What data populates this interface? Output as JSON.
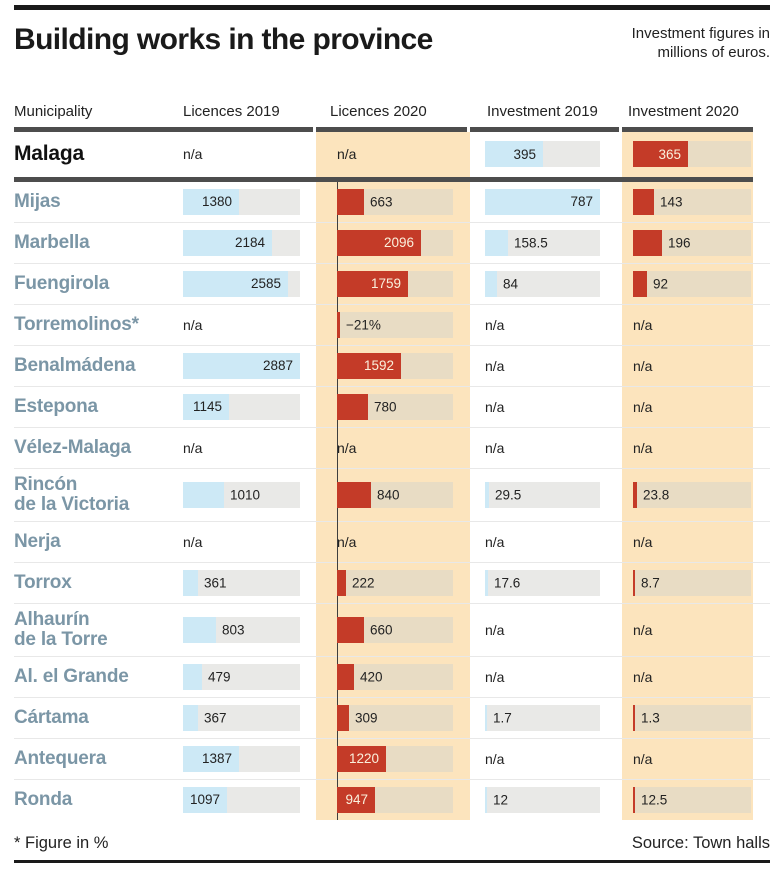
{
  "title": "Building works in the province",
  "note": "Investment figures in millions of euros.",
  "na_label": "n/a",
  "columns": [
    "Municipality",
    "Licences 2019",
    "Licences 2020",
    "Investment 2019",
    "Investment 2020"
  ],
  "footer": {
    "left": "* Figure in %",
    "right": "Source: Town halls"
  },
  "colors": {
    "bar_red": "#c43b28",
    "bar_blue": "#cde9f6",
    "track_gray": "#e9e9e7",
    "track_tan": "#e8dcc4",
    "column_tan": "#fce4bd",
    "municipality_blue": "#7b96a6",
    "separator_dark": "#4d4d4d",
    "rule_black": "#1a1a1a"
  },
  "chart_data": {
    "type": "bar",
    "title": "Building works in the province",
    "subtitle": "Investment figures in millions of euros.",
    "footnote": "* Figure in %",
    "source": "Source: Town halls",
    "categories": [
      "Malaga",
      "Mijas",
      "Marbella",
      "Fuengirola",
      "Torremolinos*",
      "Benalmádena",
      "Estepona",
      "Vélez-Malaga",
      "Rincón de la Victoria",
      "Nerja",
      "Torrox",
      "Alhaurín de la Torre",
      "Al. el Grande",
      "Cártama",
      "Antequera",
      "Ronda"
    ],
    "series": [
      {
        "name": "Licences 2019",
        "values": [
          null,
          1380,
          2184,
          2585,
          null,
          2887,
          1145,
          null,
          1010,
          null,
          361,
          803,
          479,
          367,
          1387,
          1097
        ]
      },
      {
        "name": "Licences 2020",
        "values": [
          null,
          663,
          2096,
          1759,
          "−21%",
          1592,
          780,
          null,
          840,
          null,
          222,
          660,
          420,
          309,
          1220,
          947
        ]
      },
      {
        "name": "Investment 2019",
        "values": [
          395,
          787,
          158.5,
          84,
          null,
          null,
          null,
          null,
          29.5,
          null,
          17.6,
          null,
          null,
          1.7,
          null,
          12
        ]
      },
      {
        "name": "Investment 2020",
        "values": [
          365,
          143,
          196,
          92,
          null,
          null,
          null,
          null,
          23.8,
          null,
          8.7,
          null,
          null,
          1.3,
          null,
          12.5
        ]
      }
    ],
    "axis_scales": {
      "licences_max": 2887,
      "investment_max": 787
    },
    "legend_position": "none",
    "grid": false
  },
  "scales": {
    "licences_max": 2887,
    "investment_max": 787
  },
  "rows": [
    {
      "name": "Malaga",
      "bold": true,
      "lic2019": null,
      "lic2020": null,
      "inv2019": 395,
      "inv2020": 365
    },
    {
      "name": "Mijas",
      "lic2019": 1380,
      "lic2020": 663,
      "inv2019": 787,
      "inv2020": 143
    },
    {
      "name": "Marbella",
      "lic2019": 2184,
      "lic2020": 2096,
      "inv2019": 158.5,
      "inv2020": 196
    },
    {
      "name": "Fuengirola",
      "lic2019": 2585,
      "lic2020": 1759,
      "inv2019": 84,
      "inv2020": 92
    },
    {
      "name": "Torremolinos*",
      "lic2019": null,
      "lic2020": {
        "v": null,
        "d": "−21%",
        "sliver": true
      },
      "inv2019": null,
      "inv2020": null
    },
    {
      "name": "Benalmádena",
      "lic2019": 2887,
      "lic2020": 1592,
      "inv2019": null,
      "inv2020": null
    },
    {
      "name": "Estepona",
      "lic2019": 1145,
      "lic2020": 780,
      "inv2019": null,
      "inv2020": null
    },
    {
      "name": "Vélez-Malaga",
      "lic2019": null,
      "lic2020": null,
      "inv2019": null,
      "inv2020": null
    },
    {
      "name": "Rincón\nde la Victoria",
      "lic2019": 1010,
      "lic2020": 840,
      "inv2019": 29.5,
      "inv2020": 23.8
    },
    {
      "name": "Nerja",
      "lic2019": null,
      "lic2020": null,
      "inv2019": null,
      "inv2020": null
    },
    {
      "name": "Torrox",
      "lic2019": 361,
      "lic2020": 222,
      "inv2019": 17.6,
      "inv2020": 8.7
    },
    {
      "name": "Alhaurín\nde la Torre",
      "lic2019": 803,
      "lic2020": 660,
      "inv2019": null,
      "inv2020": null
    },
    {
      "name": "Al. el Grande",
      "lic2019": 479,
      "lic2020": 420,
      "inv2019": null,
      "inv2020": null
    },
    {
      "name": "Cártama",
      "lic2019": 367,
      "lic2020": 309,
      "inv2019": 1.7,
      "inv2020": 1.3
    },
    {
      "name": "Antequera",
      "lic2019": 1387,
      "lic2020": 1220,
      "inv2019": null,
      "inv2020": null
    },
    {
      "name": "Ronda",
      "lic2019": 1097,
      "lic2020": 947,
      "inv2019": 12,
      "inv2020": 12.5
    }
  ]
}
